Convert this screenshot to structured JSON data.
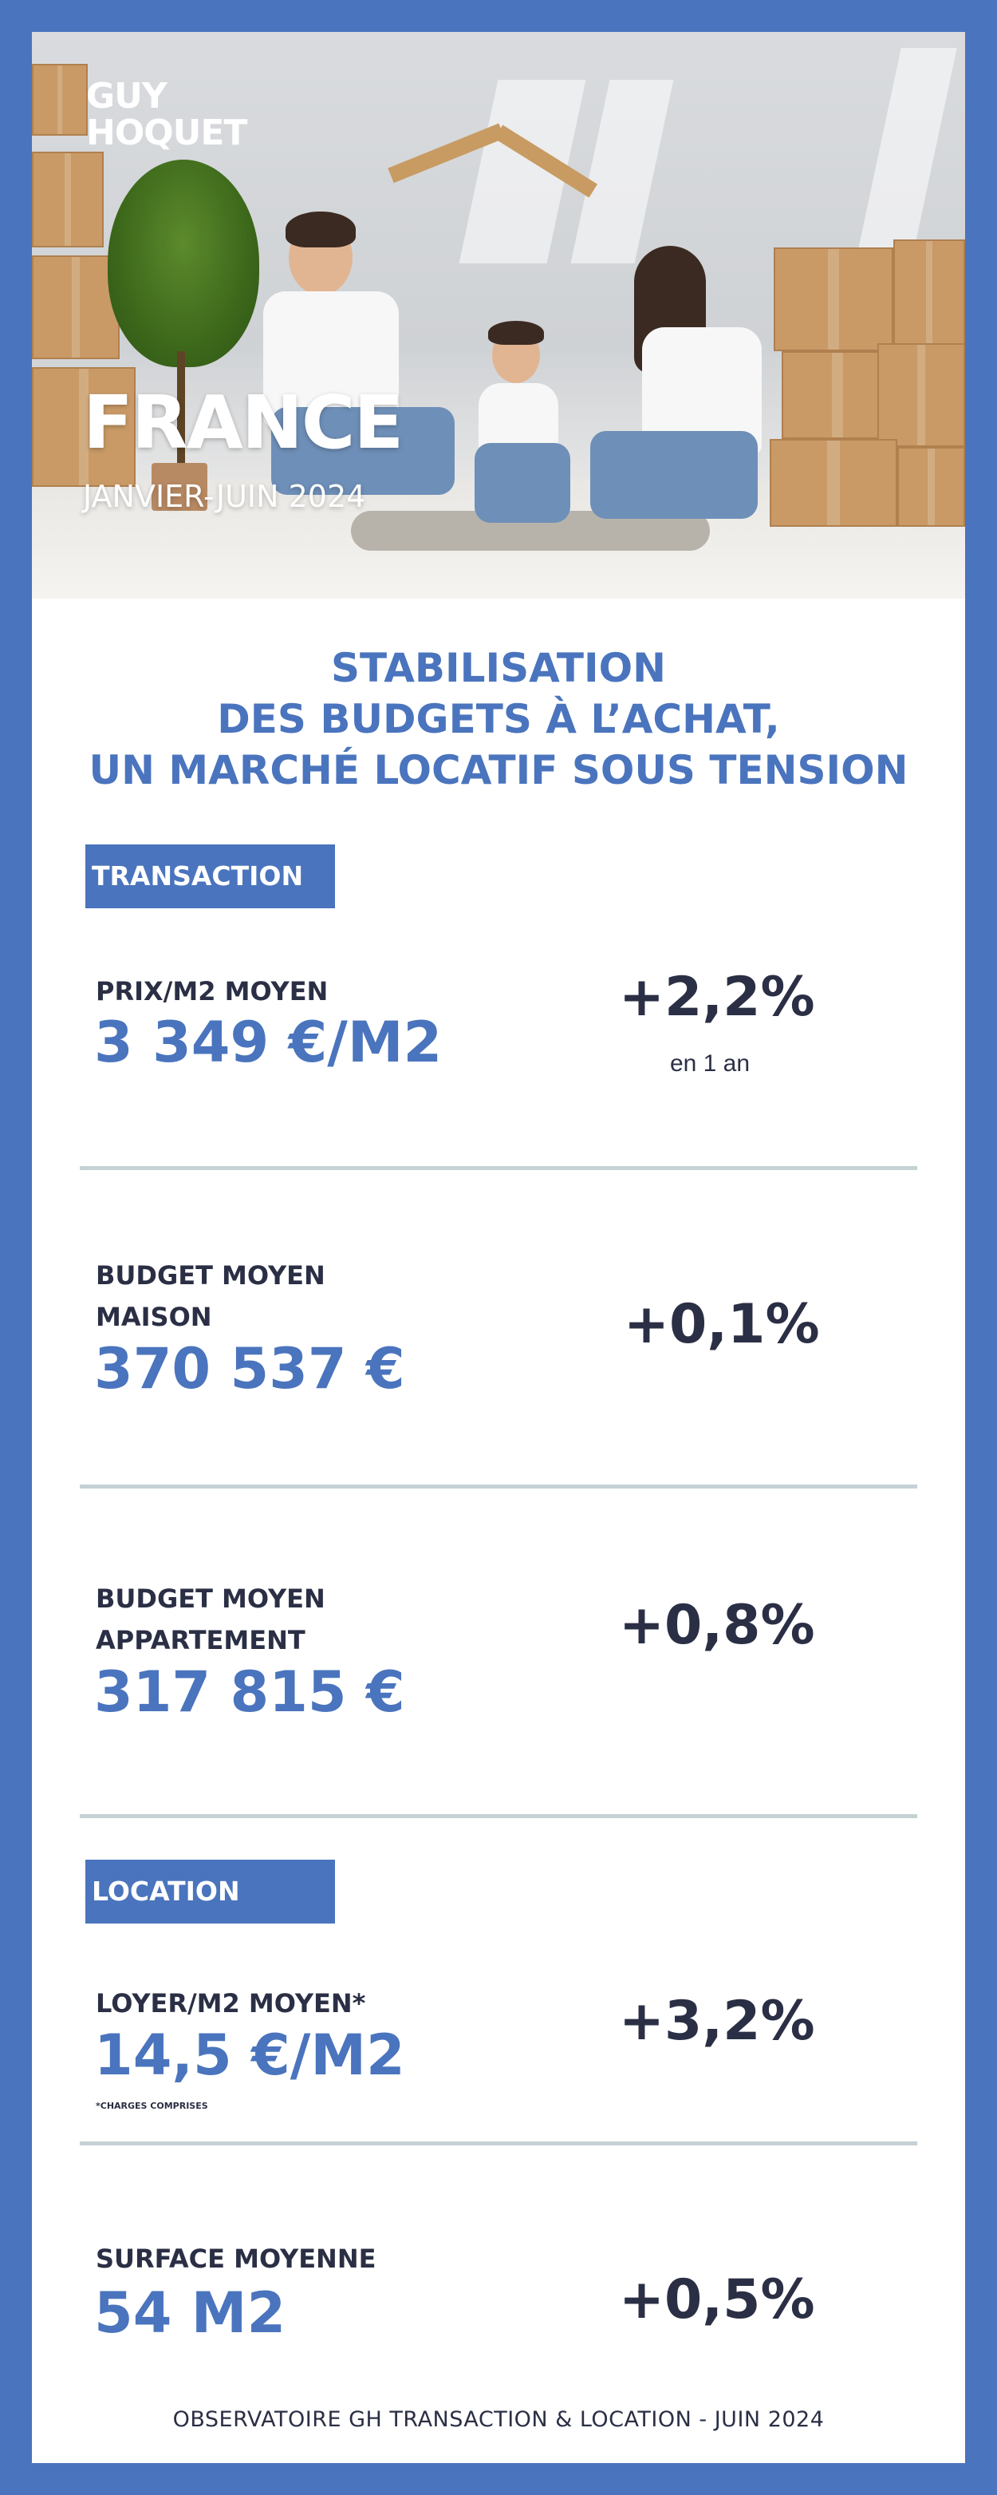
{
  "brand": {
    "logo_line1": "GUY",
    "logo_line2": "HOQUET"
  },
  "hero": {
    "title": "FRANCE",
    "period": "JANVIER-JUIN 2024"
  },
  "headline": {
    "line1": "STABILISATION",
    "line2": "DES BUDGETS À L’ACHAT,",
    "line3": "UN MARCHÉ LOCATIF SOUS TENSION"
  },
  "transaction": {
    "tag": "TRANSACTION",
    "items": [
      {
        "label": "PRIX/M2 MOYEN",
        "value": "3 349 €/M2",
        "change": "+2,2%",
        "sub": "en 1 an"
      },
      {
        "label_line1": "BUDGET MOYEN",
        "label_line2": "MAISON",
        "value": "370 537 €",
        "change": "+0,1%"
      },
      {
        "label_line1": "BUDGET MOYEN",
        "label_line2": "APPARTEMENT",
        "value": "317 815 €",
        "change": "+0,8%"
      }
    ]
  },
  "location": {
    "tag": "LOCATION",
    "items": [
      {
        "label": "LOYER/M2 MOYEN*",
        "value": "14,5 €/M2",
        "change": "+3,2%",
        "note": "*CHARGES COMPRISES"
      },
      {
        "label": "SURFACE MOYENNE",
        "value": "54 M2",
        "change": "+0,5%"
      }
    ]
  },
  "footer": "OBSERVATOIRE GH TRANSACTION & LOCATION - JUIN 2024",
  "colors": {
    "brand_blue": "#4a74bd",
    "dark_text": "#2b2f45",
    "divider": "#c5d1d4"
  }
}
